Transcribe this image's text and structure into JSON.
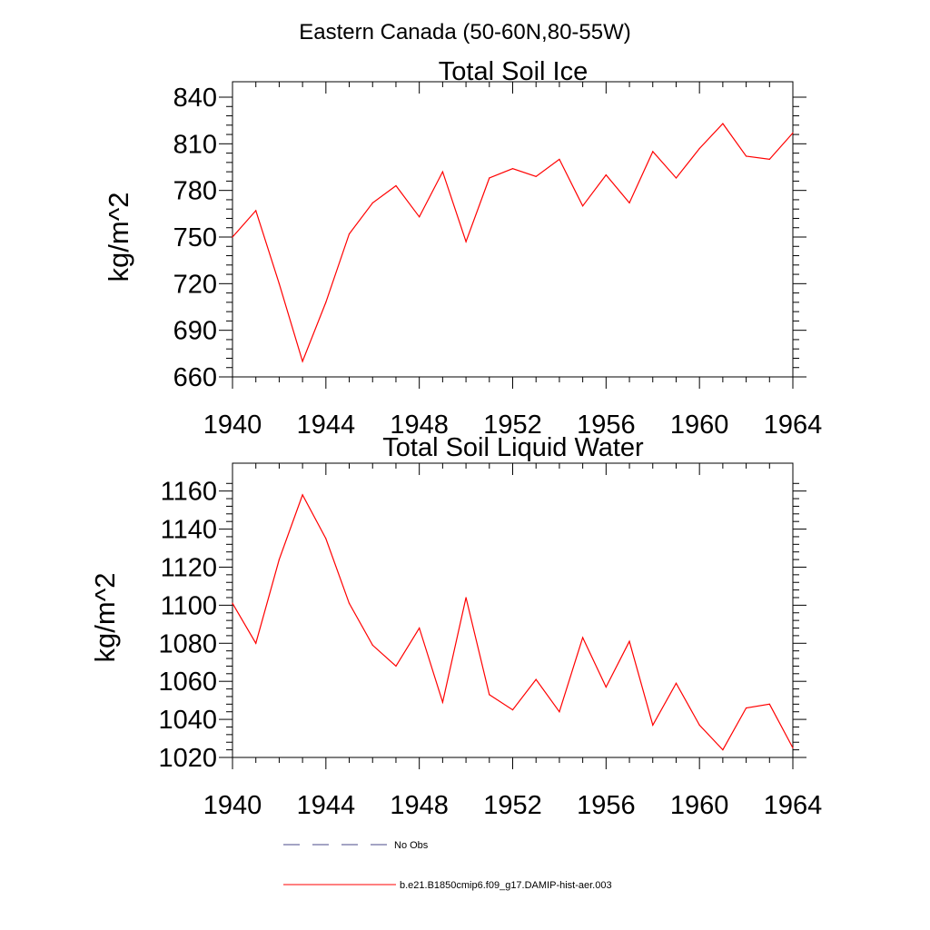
{
  "figure": {
    "title": "Eastern Canada (50-60N,80-55W)"
  },
  "colors": {
    "model_line": "#ff0000",
    "obs_line": "#4a4a8a",
    "axes": "#000000"
  },
  "chart_data": [
    {
      "type": "line",
      "title": "Total Soil Ice",
      "xlabel": "",
      "ylabel": "kg/m^2",
      "xlim": [
        1940,
        1964
      ],
      "ylim": [
        660,
        840
      ],
      "x_ticks": [
        1940,
        1944,
        1948,
        1952,
        1956,
        1960,
        1964
      ],
      "y_ticks": [
        660,
        690,
        720,
        750,
        780,
        810,
        840
      ],
      "grid": false,
      "series": [
        {
          "name": "b.e21.B1850cmip6.f09_g17.DAMIP-hist-aer.003",
          "color": "#ff0000",
          "x": [
            1940,
            1941,
            1942,
            1943,
            1944,
            1945,
            1946,
            1947,
            1948,
            1949,
            1950,
            1951,
            1952,
            1953,
            1954,
            1955,
            1956,
            1957,
            1958,
            1959,
            1960,
            1961,
            1962,
            1963,
            1964
          ],
          "values": [
            750,
            767,
            720,
            670,
            708,
            752,
            772,
            783,
            763,
            792,
            747,
            788,
            794,
            789,
            800,
            770,
            790,
            772,
            805,
            788,
            807,
            823,
            802,
            800,
            817
          ]
        }
      ]
    },
    {
      "type": "line",
      "title": "Total Soil Liquid Water",
      "xlabel": "",
      "ylabel": "kg/m^2",
      "xlim": [
        1940,
        1964
      ],
      "ylim": [
        1020,
        1167
      ],
      "x_ticks": [
        1940,
        1944,
        1948,
        1952,
        1956,
        1960,
        1964
      ],
      "y_ticks": [
        1020,
        1040,
        1060,
        1080,
        1100,
        1120,
        1140,
        1160
      ],
      "grid": false,
      "series": [
        {
          "name": "b.e21.B1850cmip6.f09_g17.DAMIP-hist-aer.003",
          "color": "#ff0000",
          "x": [
            1940,
            1941,
            1942,
            1943,
            1944,
            1945,
            1946,
            1947,
            1948,
            1949,
            1950,
            1951,
            1952,
            1953,
            1954,
            1955,
            1956,
            1957,
            1958,
            1959,
            1960,
            1961,
            1962,
            1963,
            1964
          ],
          "values": [
            1101,
            1080,
            1124,
            1158,
            1135,
            1101,
            1079,
            1068,
            1088,
            1049,
            1104,
            1053,
            1045,
            1061,
            1044,
            1083,
            1057,
            1081,
            1037,
            1059,
            1037,
            1024,
            1046,
            1048,
            1025
          ]
        }
      ]
    }
  ],
  "legend": {
    "placement": "bottom",
    "entries": [
      {
        "label": "No Obs",
        "style": "dashed",
        "color": "#4a4a8a"
      },
      {
        "label": "b.e21.B1850cmip6.f09_g17.DAMIP-hist-aer.003",
        "style": "solid",
        "color": "#ff0000"
      }
    ]
  }
}
